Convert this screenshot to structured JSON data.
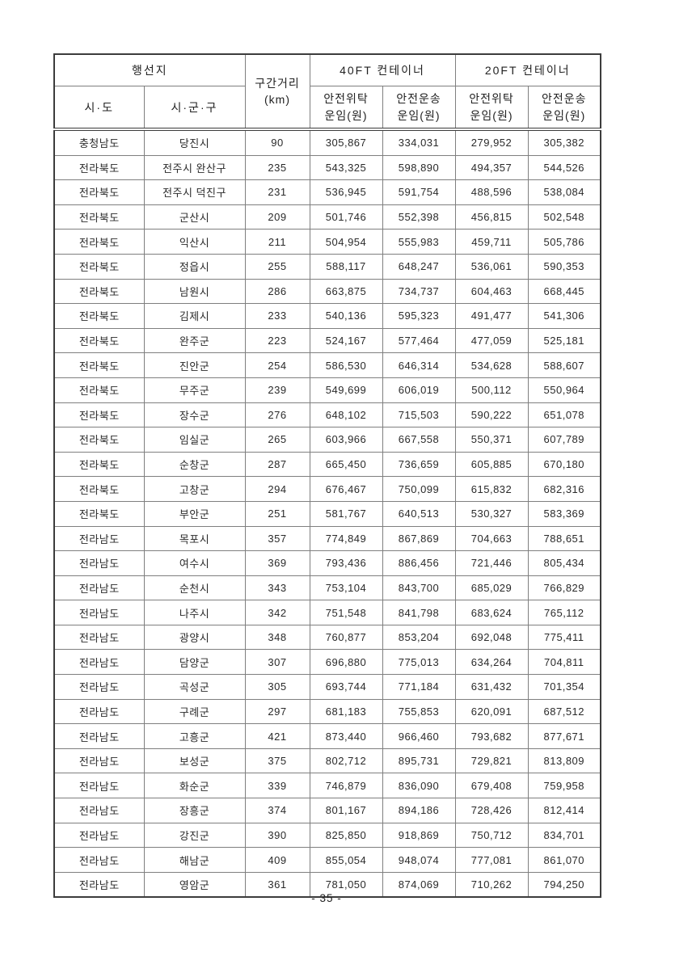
{
  "page": {
    "footer_page_number": "- 35 -"
  },
  "table": {
    "headers": {
      "destination_group": "행선지",
      "province": "시·도",
      "district": "시·군·구",
      "distance": "구간거리\n(km)",
      "container_40ft": "40FT 컨테이너",
      "container_20ft": "20FT 컨테이너",
      "safe_consignment_fare": "안전위탁\n운임(원)",
      "safe_transport_fare": "안전운송\n운임(원)"
    },
    "column_names": [
      "province",
      "district",
      "distance-km",
      "fare-40ft-consignment",
      "fare-40ft-transport",
      "fare-20ft-consignment",
      "fare-20ft-transport"
    ],
    "rows": [
      [
        "충청남도",
        "당진시",
        "90",
        "305,867",
        "334,031",
        "279,952",
        "305,382"
      ],
      [
        "전라북도",
        "전주시 완산구",
        "235",
        "543,325",
        "598,890",
        "494,357",
        "544,526"
      ],
      [
        "전라북도",
        "전주시 덕진구",
        "231",
        "536,945",
        "591,754",
        "488,596",
        "538,084"
      ],
      [
        "전라북도",
        "군산시",
        "209",
        "501,746",
        "552,398",
        "456,815",
        "502,548"
      ],
      [
        "전라북도",
        "익산시",
        "211",
        "504,954",
        "555,983",
        "459,711",
        "505,786"
      ],
      [
        "전라북도",
        "정읍시",
        "255",
        "588,117",
        "648,247",
        "536,061",
        "590,353"
      ],
      [
        "전라북도",
        "남원시",
        "286",
        "663,875",
        "734,737",
        "604,463",
        "668,445"
      ],
      [
        "전라북도",
        "김제시",
        "233",
        "540,136",
        "595,323",
        "491,477",
        "541,306"
      ],
      [
        "전라북도",
        "완주군",
        "223",
        "524,167",
        "577,464",
        "477,059",
        "525,181"
      ],
      [
        "전라북도",
        "진안군",
        "254",
        "586,530",
        "646,314",
        "534,628",
        "588,607"
      ],
      [
        "전라북도",
        "무주군",
        "239",
        "549,699",
        "606,019",
        "500,112",
        "550,964"
      ],
      [
        "전라북도",
        "장수군",
        "276",
        "648,102",
        "715,503",
        "590,222",
        "651,078"
      ],
      [
        "전라북도",
        "임실군",
        "265",
        "603,966",
        "667,558",
        "550,371",
        "607,789"
      ],
      [
        "전라북도",
        "순창군",
        "287",
        "665,450",
        "736,659",
        "605,885",
        "670,180"
      ],
      [
        "전라북도",
        "고창군",
        "294",
        "676,467",
        "750,099",
        "615,832",
        "682,316"
      ],
      [
        "전라북도",
        "부안군",
        "251",
        "581,767",
        "640,513",
        "530,327",
        "583,369"
      ],
      [
        "전라남도",
        "목포시",
        "357",
        "774,849",
        "867,869",
        "704,663",
        "788,651"
      ],
      [
        "전라남도",
        "여수시",
        "369",
        "793,436",
        "886,456",
        "721,446",
        "805,434"
      ],
      [
        "전라남도",
        "순천시",
        "343",
        "753,104",
        "843,700",
        "685,029",
        "766,829"
      ],
      [
        "전라남도",
        "나주시",
        "342",
        "751,548",
        "841,798",
        "683,624",
        "765,112"
      ],
      [
        "전라남도",
        "광양시",
        "348",
        "760,877",
        "853,204",
        "692,048",
        "775,411"
      ],
      [
        "전라남도",
        "담양군",
        "307",
        "696,880",
        "775,013",
        "634,264",
        "704,811"
      ],
      [
        "전라남도",
        "곡성군",
        "305",
        "693,744",
        "771,184",
        "631,432",
        "701,354"
      ],
      [
        "전라남도",
        "구례군",
        "297",
        "681,183",
        "755,853",
        "620,091",
        "687,512"
      ],
      [
        "전라남도",
        "고흥군",
        "421",
        "873,440",
        "966,460",
        "793,682",
        "877,671"
      ],
      [
        "전라남도",
        "보성군",
        "375",
        "802,712",
        "895,731",
        "729,821",
        "813,809"
      ],
      [
        "전라남도",
        "화순군",
        "339",
        "746,879",
        "836,090",
        "679,408",
        "759,958"
      ],
      [
        "전라남도",
        "장흥군",
        "374",
        "801,167",
        "894,186",
        "728,426",
        "812,414"
      ],
      [
        "전라남도",
        "강진군",
        "390",
        "825,850",
        "918,869",
        "750,712",
        "834,701"
      ],
      [
        "전라남도",
        "해남군",
        "409",
        "855,054",
        "948,074",
        "777,081",
        "861,070"
      ],
      [
        "전라남도",
        "영암군",
        "361",
        "781,050",
        "874,069",
        "710,262",
        "794,250"
      ]
    ]
  }
}
